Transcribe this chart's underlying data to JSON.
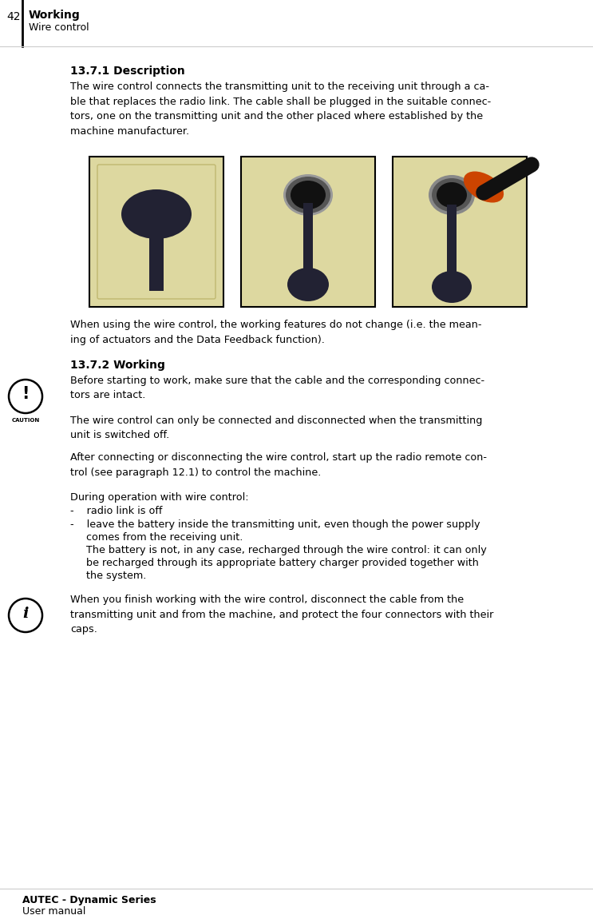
{
  "page_number": "42",
  "header_title": "Working",
  "header_subtitle": "Wire control",
  "footer_bold": "AUTEC - Dynamic Series",
  "footer_normal": "User manual",
  "section1_title": "13.7.1 Description",
  "section1_body": "The wire control connects the transmitting unit to the receiving unit through a ca-\nble that replaces the radio link. The cable shall be plugged in the suitable connec-\ntors, one on the transmitting unit and the other placed where established by the\nmachine manufacturer.",
  "section1_after_img": "When using the wire control, the working features do not change (i.e. the mean-\ning of actuators and the Data Feedback function).",
  "section2_title": "13.7.2 Working",
  "caution_text": "Before starting to work, make sure that the cable and the corresponding connec-\ntors are intact.",
  "para1": "The wire control can only be connected and disconnected when the transmitting\nunit is switched off.",
  "para2": "After connecting or disconnecting the wire control, start up the radio remote con-\ntrol (see paragraph 12.1) to control the machine.",
  "para3": "During operation with wire control:",
  "bullet1": "-    radio link is off",
  "bullet2_line1": "-    leave the battery inside the transmitting unit, even though the power supply",
  "bullet2_line2": "     comes from the receiving unit.",
  "bullet2_line3": "     The battery is not, in any case, recharged through the wire control: it can only",
  "bullet2_line4": "     be recharged through its appropriate battery charger provided together with",
  "bullet2_line5": "     the system.",
  "info_text": "When you finish working with the wire control, disconnect the cable from the\ntransmitting unit and from the machine, and protect the four connectors with their\ncaps.",
  "bg_color": "#ffffff",
  "text_color": "#000000",
  "img_bg": "#ddd8a0",
  "img_border": "#000000",
  "dark_shape": "#222233",
  "grey_shape": "#888888",
  "orange_shape": "#cc4400"
}
